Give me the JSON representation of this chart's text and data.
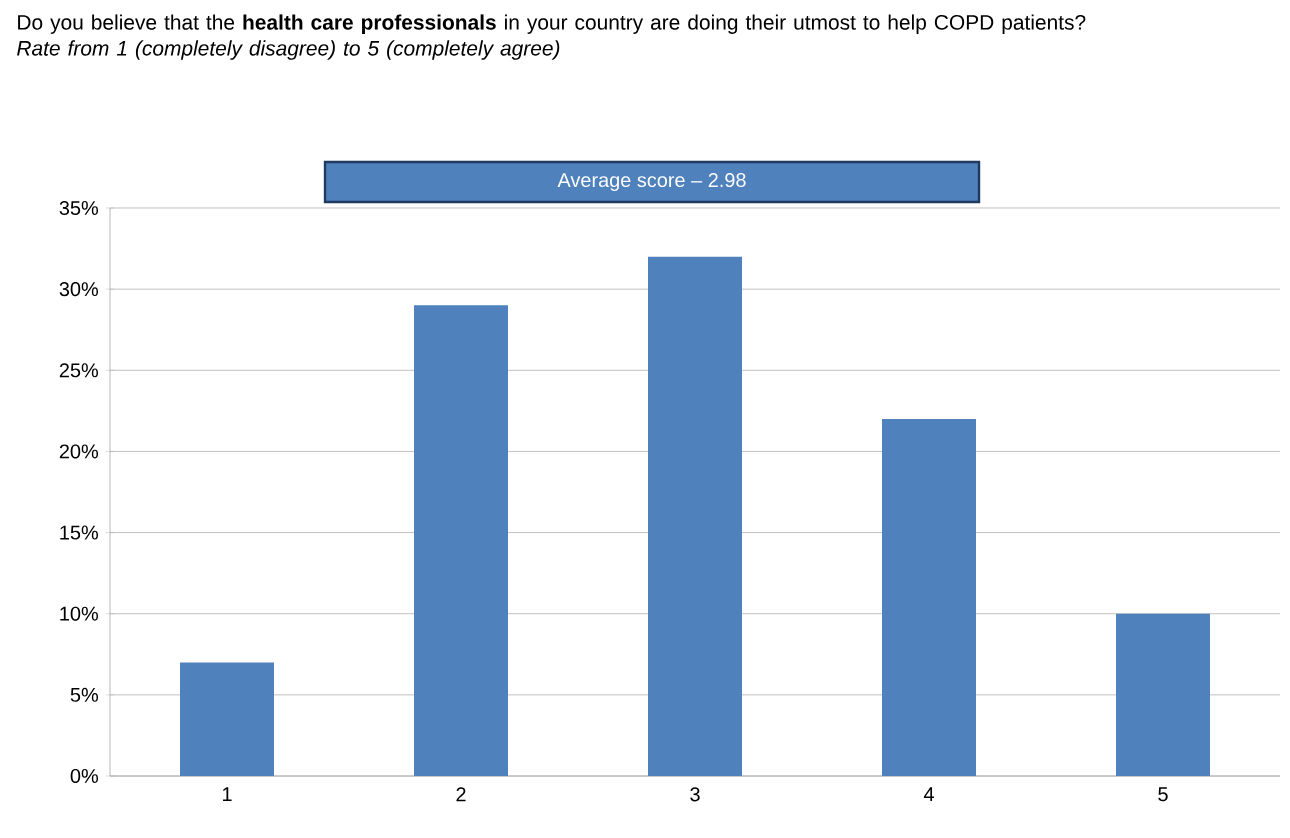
{
  "chart_data": {
    "type": "bar",
    "title": "Do you believe that the **health care professionals** in your country are doing their utmost to help COPD patients?",
    "subtitle": "Rate from 1 (completely disagree) to 5 (completely agree)",
    "annotations": [
      "Average score – 2.98"
    ],
    "categories": [
      "1",
      "2",
      "3",
      "4",
      "5"
    ],
    "values": [
      7,
      29,
      32,
      22,
      10
    ],
    "color": "#4f81bd",
    "ylim": [
      0,
      35
    ],
    "yticks": [
      {
        "value": 0,
        "label": "0%"
      },
      {
        "value": 5,
        "label": "5%"
      },
      {
        "value": 10,
        "label": "10%"
      },
      {
        "value": 15,
        "label": "15%"
      },
      {
        "value": 20,
        "label": "20%"
      },
      {
        "value": 25,
        "label": "25%"
      },
      {
        "value": 30,
        "label": "30%"
      },
      {
        "value": 35,
        "label": "35%"
      }
    ],
    "grid": "y"
  }
}
